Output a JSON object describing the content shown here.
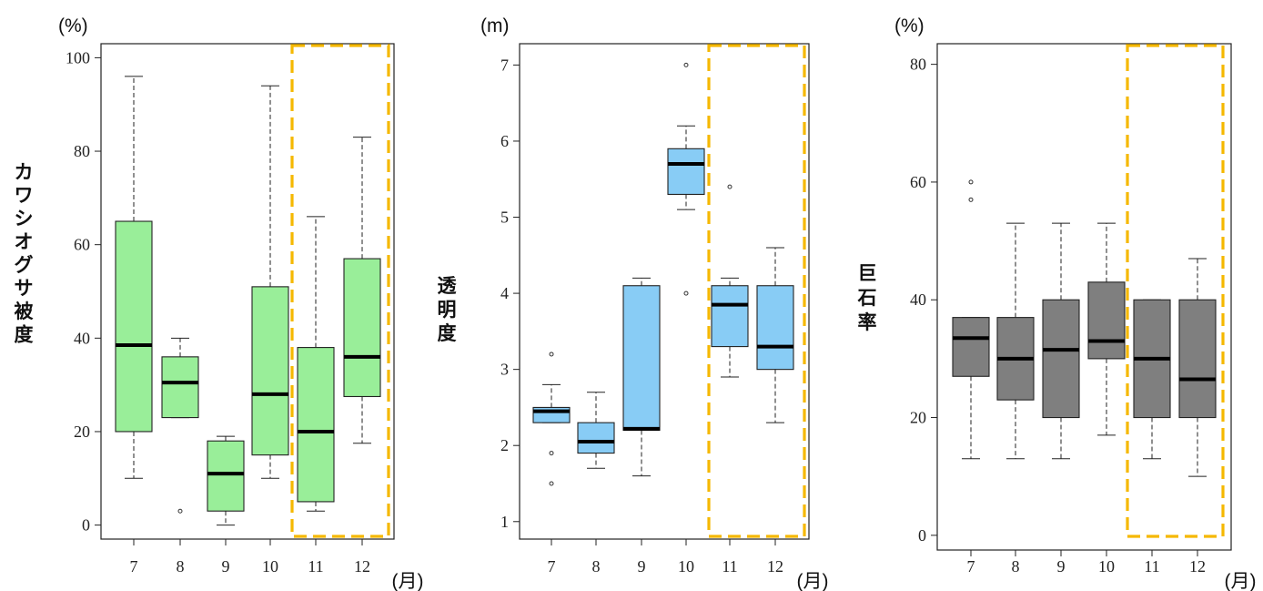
{
  "x_unit_label": "(月)",
  "chart_data": [
    {
      "type": "boxplot",
      "unit_label": "(%)",
      "ylabel": "カワシオグサ被度",
      "ylim": [
        -3,
        103
      ],
      "yticks": [
        0,
        20,
        40,
        60,
        80,
        100
      ],
      "categories": [
        "7",
        "8",
        "9",
        "10",
        "11",
        "12"
      ],
      "box_color": "#99ee99",
      "highlight_categories": [
        "11",
        "12"
      ],
      "highlight_color": "#f5b800",
      "boxes": [
        {
          "category": "7",
          "whisker_low": 10,
          "q1": 20,
          "median": 38.5,
          "q3": 65,
          "whisker_high": 96,
          "outliers": []
        },
        {
          "category": "8",
          "whisker_low": 23,
          "q1": 23,
          "median": 30.5,
          "q3": 36,
          "whisker_high": 40,
          "outliers": [
            3
          ]
        },
        {
          "category": "9",
          "whisker_low": 0,
          "q1": 3,
          "median": 11,
          "q3": 18,
          "whisker_high": 19,
          "outliers": []
        },
        {
          "category": "10",
          "whisker_low": 10,
          "q1": 15,
          "median": 28,
          "q3": 51,
          "whisker_high": 94,
          "outliers": []
        },
        {
          "category": "11",
          "whisker_low": 3,
          "q1": 5,
          "median": 20,
          "q3": 38,
          "whisker_high": 66,
          "outliers": []
        },
        {
          "category": "12",
          "whisker_low": 17.5,
          "q1": 27.5,
          "median": 36,
          "q3": 57,
          "whisker_high": 83,
          "outliers": []
        }
      ]
    },
    {
      "type": "boxplot",
      "unit_label": "(m)",
      "ylabel": "透明度",
      "ylim": [
        0.77,
        7.28
      ],
      "yticks": [
        1,
        2,
        3,
        4,
        5,
        6,
        7
      ],
      "categories": [
        "7",
        "8",
        "9",
        "10",
        "11",
        "12"
      ],
      "box_color": "#88ccf5",
      "highlight_categories": [
        "11",
        "12"
      ],
      "highlight_color": "#f5b800",
      "boxes": [
        {
          "category": "7",
          "whisker_low": 2.3,
          "q1": 2.3,
          "median": 2.45,
          "q3": 2.5,
          "whisker_high": 2.8,
          "outliers": [
            1.5,
            1.9,
            3.2
          ]
        },
        {
          "category": "8",
          "whisker_low": 1.7,
          "q1": 1.9,
          "median": 2.05,
          "q3": 2.3,
          "whisker_high": 2.7,
          "outliers": []
        },
        {
          "category": "9",
          "whisker_low": 1.6,
          "q1": 2.2,
          "median": 2.22,
          "q3": 4.1,
          "whisker_high": 4.2,
          "outliers": []
        },
        {
          "category": "10",
          "whisker_low": 5.1,
          "q1": 5.3,
          "median": 5.7,
          "q3": 5.9,
          "whisker_high": 6.2,
          "outliers": [
            4.0,
            7.0
          ]
        },
        {
          "category": "11",
          "whisker_low": 2.9,
          "q1": 3.3,
          "median": 3.85,
          "q3": 4.1,
          "whisker_high": 4.2,
          "outliers": [
            5.4
          ]
        },
        {
          "category": "12",
          "whisker_low": 2.3,
          "q1": 3.0,
          "median": 3.3,
          "q3": 4.1,
          "whisker_high": 4.6,
          "outliers": []
        }
      ]
    },
    {
      "type": "boxplot",
      "unit_label": "(%)",
      "ylabel": "巨石率",
      "ylim": [
        -2.5,
        83.5
      ],
      "yticks": [
        0,
        20,
        40,
        60,
        80
      ],
      "categories": [
        "7",
        "8",
        "9",
        "10",
        "11",
        "12"
      ],
      "box_color": "#7f7f7f",
      "highlight_categories": [
        "11",
        "12"
      ],
      "highlight_color": "#f5b800",
      "boxes": [
        {
          "category": "7",
          "whisker_low": 13,
          "q1": 27,
          "median": 33.5,
          "q3": 37,
          "whisker_high": 37,
          "outliers": [
            57,
            60
          ]
        },
        {
          "category": "8",
          "whisker_low": 13,
          "q1": 23,
          "median": 30,
          "q3": 37,
          "whisker_high": 53,
          "outliers": []
        },
        {
          "category": "9",
          "whisker_low": 13,
          "q1": 20,
          "median": 31.5,
          "q3": 40,
          "whisker_high": 53,
          "outliers": []
        },
        {
          "category": "10",
          "whisker_low": 17,
          "q1": 30,
          "median": 33,
          "q3": 43,
          "whisker_high": 53,
          "outliers": []
        },
        {
          "category": "11",
          "whisker_low": 13,
          "q1": 20,
          "median": 30,
          "q3": 40,
          "whisker_high": 40,
          "outliers": []
        },
        {
          "category": "12",
          "whisker_low": 10,
          "q1": 20,
          "median": 26.5,
          "q3": 40,
          "whisker_high": 47,
          "outliers": []
        }
      ]
    }
  ]
}
